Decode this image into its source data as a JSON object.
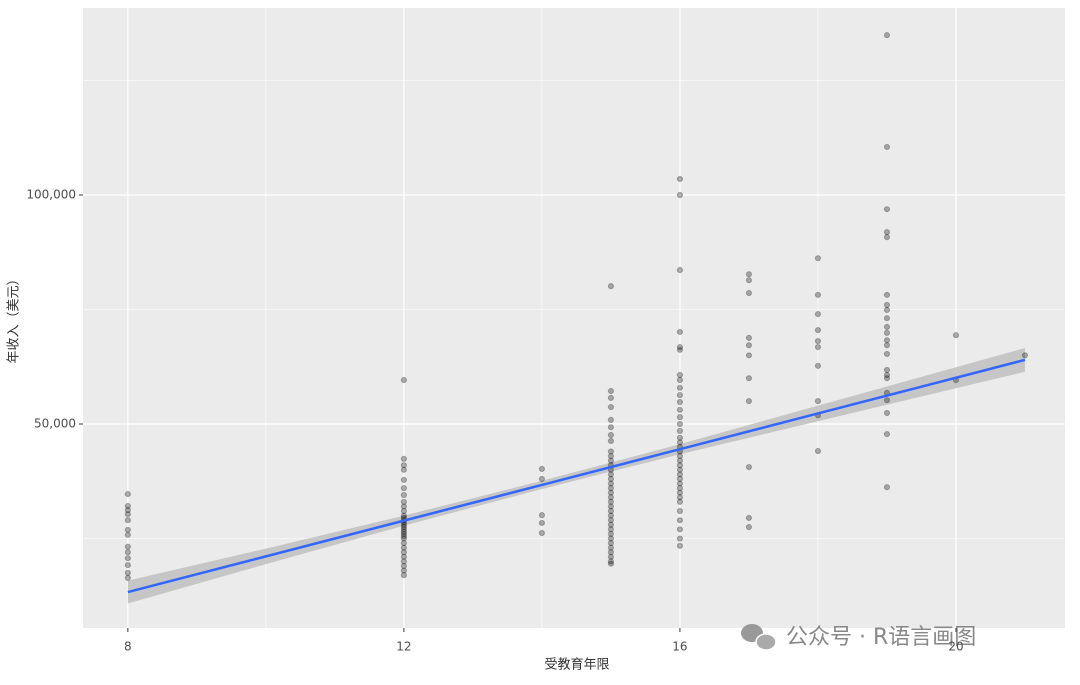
{
  "chart_data": {
    "type": "scatter",
    "x_label": "受教育年限",
    "y_label": "年收入（美元）",
    "watermark": "公众号 · R语言画图",
    "xlim": [
      7.35,
      21.58
    ],
    "ylim": [
      5460,
      140830
    ],
    "xticks": [
      8,
      12,
      16,
      20
    ],
    "yticks": [
      {
        "value": 50000,
        "label": "50,000"
      },
      {
        "value": 100000,
        "label": "100,000"
      }
    ],
    "xminor": [
      10,
      14,
      18
    ],
    "yminor": [
      25000,
      75000,
      125000
    ],
    "grid": true,
    "point_color": "#000000",
    "groups": [
      {
        "x": 8,
        "values": [
          34700,
          32100,
          31200,
          30300,
          29000,
          26900,
          25800,
          23200,
          22000,
          20700,
          19200,
          17500,
          16400
        ]
      },
      {
        "x": 12,
        "values": [
          59600,
          42400,
          41000,
          40000,
          37800,
          36000,
          34500,
          33000,
          32000,
          31000,
          30000,
          29500,
          29000,
          28500,
          28000,
          27500,
          27000,
          26500,
          26000,
          25500,
          25000,
          24000,
          23000,
          22000,
          21000,
          20000,
          19000,
          18000,
          17000
        ]
      },
      {
        "x": 14,
        "values": [
          40200,
          38000,
          30100,
          28400,
          26200
        ]
      },
      {
        "x": 15,
        "values": [
          80100,
          57200,
          55700,
          53700,
          50900,
          49300,
          47600,
          46300,
          44000,
          43000,
          42000,
          41000,
          40000,
          39000,
          38000,
          37000,
          36000,
          35000,
          34000,
          33000,
          32000,
          31000,
          30000,
          29000,
          28000,
          27000,
          26000,
          25000,
          24000,
          23000,
          22000,
          21000,
          20000,
          19500
        ]
      },
      {
        "x": 16,
        "values": [
          103500,
          100000,
          83600,
          70100,
          66800,
          66200,
          60700,
          59600,
          57900,
          56300,
          54800,
          53100,
          51500,
          50000,
          48500,
          47000,
          46000,
          45000,
          44000,
          43000,
          42000,
          41000,
          40000,
          39000,
          38000,
          37000,
          36000,
          35000,
          34000,
          33000,
          31000,
          29000,
          27000,
          25000,
          23400
        ]
      },
      {
        "x": 17,
        "values": [
          82700,
          81400,
          78600,
          68800,
          67200,
          65000,
          60000,
          55000,
          40600,
          29500,
          27500
        ]
      },
      {
        "x": 18,
        "values": [
          86200,
          78200,
          74000,
          70500,
          68100,
          66800,
          62700,
          55000,
          51900,
          44100
        ]
      },
      {
        "x": 19,
        "values": [
          134900,
          110500,
          96900,
          91900,
          90800,
          78200,
          76000,
          74900,
          73100,
          71200,
          69900,
          68300,
          67200,
          65300,
          61800,
          60700,
          60000,
          56800,
          55200,
          52400,
          47800,
          36200
        ]
      },
      {
        "x": 20,
        "values": [
          69400,
          59600
        ]
      },
      {
        "x": 21,
        "values": [
          65000
        ]
      }
    ],
    "smooth": {
      "color": "#3366ff",
      "band_color": "#c0c0c0",
      "x": [
        8,
        10,
        12,
        14,
        16,
        18,
        20,
        21
      ],
      "y": [
        13300,
        21100,
        28900,
        36700,
        44500,
        52300,
        60100,
        64000
      ],
      "lower": [
        10800,
        19400,
        27800,
        35800,
        43400,
        50600,
        57800,
        61400
      ],
      "upper": [
        15800,
        22800,
        30000,
        37600,
        45600,
        54000,
        62400,
        66600
      ]
    }
  }
}
